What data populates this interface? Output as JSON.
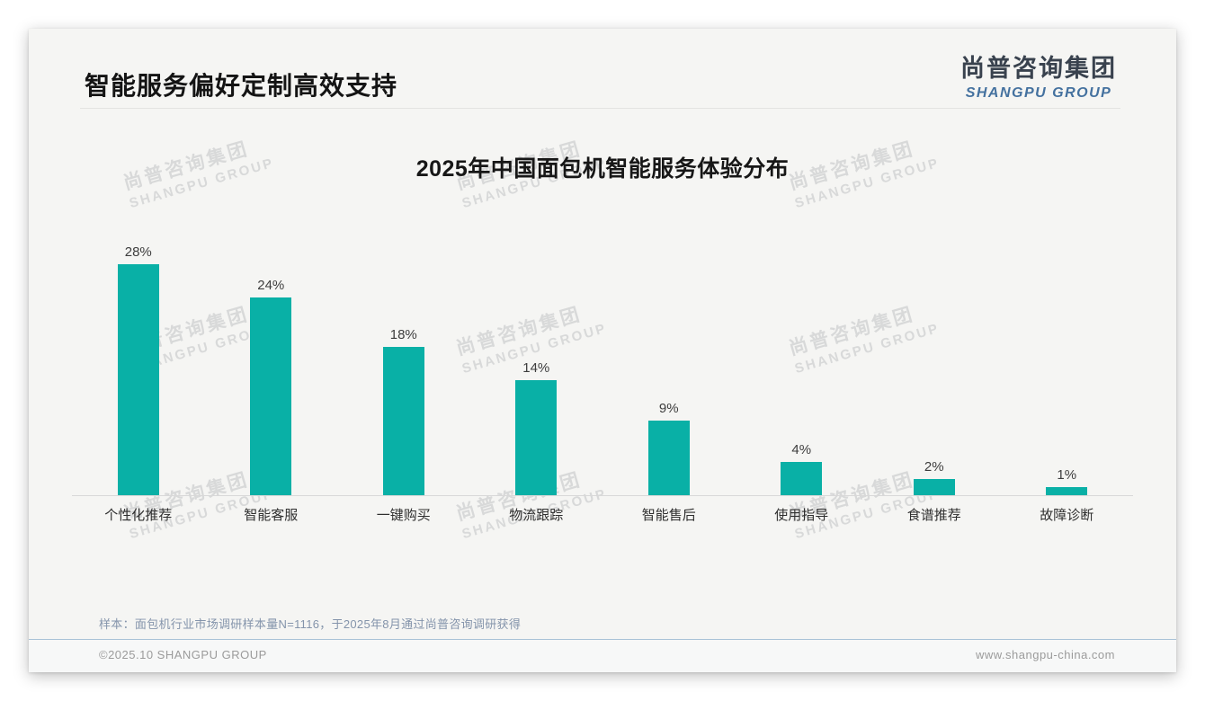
{
  "page": {
    "title": "智能服务偏好定制高效支持",
    "logo": {
      "cn": "尚普咨询集团",
      "en": "SHANGPU GROUP"
    },
    "watermark": {
      "cn": "尚普咨询集团",
      "en": "SHANGPU GROUP"
    },
    "note": "样本：面包机行业市场调研样本量N=1116，于2025年8月通过尚普咨询调研获得",
    "footer": {
      "copyright": "©2025.10 SHANGPU GROUP",
      "website": "www.shangpu-china.com"
    }
  },
  "chart_data": {
    "type": "bar",
    "title": "2025年中国面包机智能服务体验分布",
    "categories": [
      "个性化推荐",
      "智能客服",
      "一键购买",
      "物流跟踪",
      "智能售后",
      "使用指导",
      "食谱推荐",
      "故障诊断"
    ],
    "values": [
      28,
      24,
      18,
      14,
      9,
      4,
      2,
      1
    ],
    "unit": "%",
    "bar_color": "#09b0a6",
    "xlabel": "",
    "ylabel": "",
    "ylim": [
      0,
      30
    ],
    "grid": false,
    "legend": "none",
    "data_labels": true
  }
}
